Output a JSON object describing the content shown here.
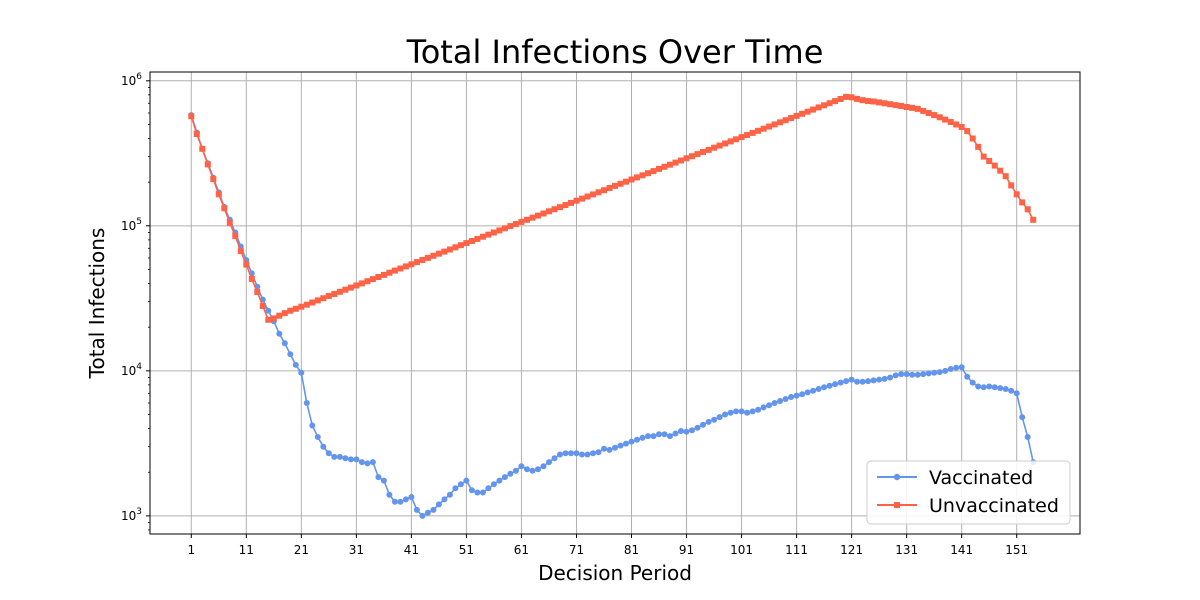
{
  "chart_data": {
    "type": "line",
    "title": "Total Infections Over Time",
    "xlabel": "Decision Period",
    "ylabel": "Total Infections",
    "xlim": [
      -6.5,
      162.5
    ],
    "ylim": [
      750,
      1150000
    ],
    "y_scale": "log",
    "grid": true,
    "legend_position": "lower-right",
    "x_ticks": [
      1,
      11,
      21,
      31,
      41,
      51,
      61,
      71,
      81,
      91,
      101,
      111,
      121,
      131,
      141,
      151
    ],
    "y_ticks": [
      {
        "value": 1000,
        "label_base": "10",
        "label_exp": "3"
      },
      {
        "value": 10000,
        "label_base": "10",
        "label_exp": "4"
      },
      {
        "value": 100000,
        "label_base": "10",
        "label_exp": "5"
      },
      {
        "value": 1000000,
        "label_base": "10",
        "label_exp": "6"
      }
    ],
    "series": [
      {
        "name": "Vaccinated",
        "color": "#6495ED",
        "marker": "circle",
        "x_start": 1,
        "values": [
          580000,
          440000,
          340000,
          270000,
          215000,
          170000,
          135000,
          110000,
          90000,
          72000,
          58000,
          47000,
          38000,
          31000,
          26000,
          22000,
          18000,
          15500,
          13000,
          11000,
          9700,
          6000,
          4200,
          3500,
          3000,
          2700,
          2550,
          2550,
          2500,
          2450,
          2450,
          2350,
          2300,
          2350,
          1850,
          1750,
          1400,
          1250,
          1250,
          1300,
          1350,
          1100,
          1000,
          1050,
          1100,
          1200,
          1300,
          1400,
          1550,
          1650,
          1750,
          1500,
          1450,
          1450,
          1550,
          1650,
          1750,
          1850,
          1950,
          2050,
          2200,
          2100,
          2050,
          2100,
          2200,
          2350,
          2500,
          2650,
          2700,
          2700,
          2700,
          2650,
          2650,
          2700,
          2750,
          2900,
          2850,
          2950,
          3050,
          3150,
          3250,
          3350,
          3450,
          3550,
          3550,
          3650,
          3650,
          3550,
          3700,
          3850,
          3800,
          3900,
          4050,
          4250,
          4450,
          4600,
          4800,
          5000,
          5150,
          5250,
          5250,
          5150,
          5250,
          5400,
          5600,
          5800,
          6000,
          6200,
          6400,
          6600,
          6750,
          6900,
          7100,
          7300,
          7500,
          7700,
          7900,
          8100,
          8300,
          8500,
          8700,
          8400,
          8400,
          8500,
          8600,
          8700,
          8800,
          9000,
          9300,
          9500,
          9500,
          9400,
          9400,
          9500,
          9600,
          9700,
          9800,
          10000,
          10300,
          10500,
          10600,
          9100,
          8300,
          7800,
          7700,
          7800,
          7700,
          7600,
          7500,
          7300,
          7000,
          4800,
          3500,
          2350
        ]
      },
      {
        "name": "Unvaccinated",
        "color": "#FF6347",
        "marker": "square",
        "x_start": 1,
        "values": [
          570000,
          430000,
          340000,
          265000,
          210000,
          165000,
          132000,
          105000,
          85000,
          67000,
          54000,
          43000,
          35000,
          28000,
          22500,
          23000,
          24000,
          25000,
          26000,
          26800,
          27700,
          28600,
          29600,
          30600,
          31700,
          32800,
          33900,
          35100,
          36300,
          37500,
          38800,
          40100,
          41500,
          42900,
          44400,
          45900,
          47500,
          49100,
          50800,
          52500,
          54300,
          56200,
          58100,
          60100,
          62100,
          64200,
          66400,
          68700,
          71100,
          73500,
          76000,
          78600,
          81300,
          84100,
          87000,
          90000,
          93000,
          96200,
          99500,
          102900,
          106400,
          110000,
          113800,
          117700,
          121700,
          125900,
          130200,
          134600,
          139200,
          144000,
          149000,
          154000,
          159300,
          164800,
          170400,
          176200,
          182300,
          188500,
          195000,
          201600,
          208600,
          215700,
          223100,
          230700,
          238600,
          246800,
          255200,
          264000,
          273000,
          282300,
          292000,
          302000,
          312300,
          323000,
          334100,
          345500,
          357300,
          369500,
          382200,
          395300,
          408800,
          422800,
          437300,
          452300,
          467800,
          483800,
          500400,
          517500,
          535200,
          553600,
          572500,
          592100,
          612400,
          633400,
          655100,
          677500,
          700800,
          724800,
          749600,
          775000,
          770000,
          750000,
          735000,
          725000,
          720000,
          710000,
          700000,
          690000,
          680000,
          670000,
          660000,
          650000,
          640000,
          620000,
          600000,
          580000,
          560000,
          540000,
          520000,
          500000,
          480000,
          450000,
          400000,
          350000,
          300000,
          280000,
          260000,
          240000,
          220000,
          190000,
          165000,
          145000,
          130000,
          110000
        ]
      }
    ]
  }
}
